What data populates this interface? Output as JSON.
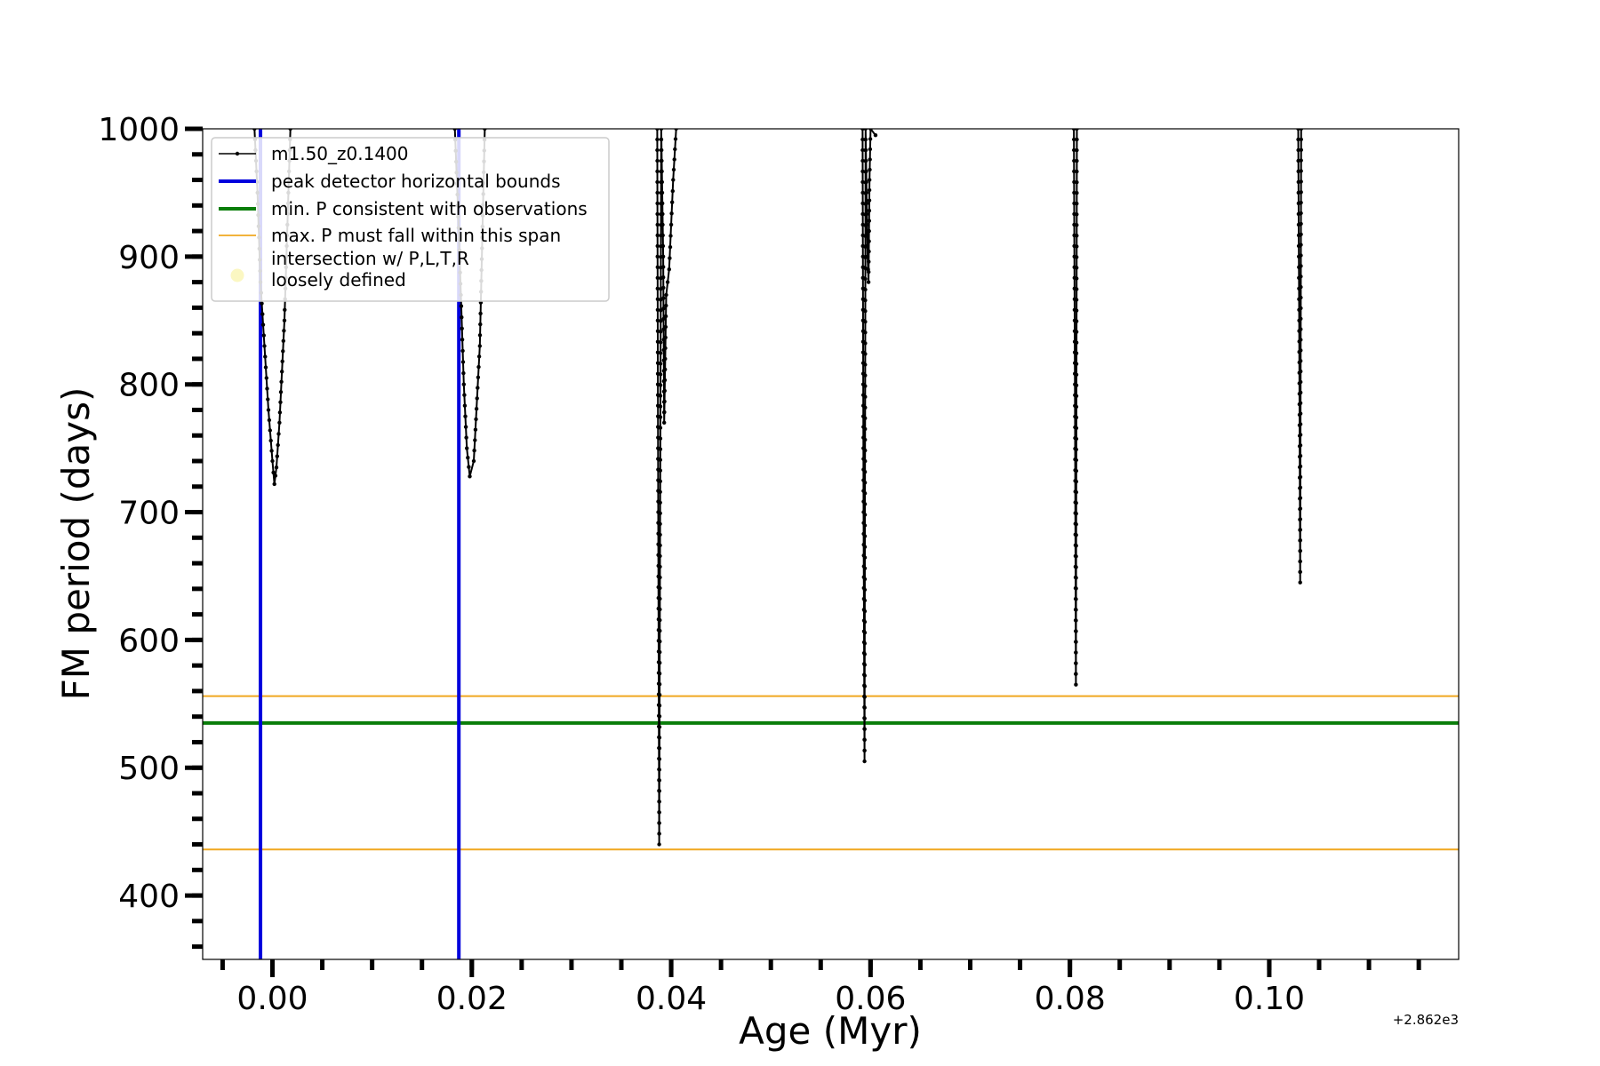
{
  "chart_data": {
    "type": "line",
    "title": "",
    "xlabel": "Age (Myr)",
    "ylabel": "FM period (days)",
    "x_offset_label": "+2.862e3",
    "xlim": [
      -0.007,
      0.119
    ],
    "ylim": [
      350,
      1000
    ],
    "x_ticks": [
      {
        "value": 0.0,
        "label": "0.00"
      },
      {
        "value": 0.02,
        "label": "0.02"
      },
      {
        "value": 0.04,
        "label": "0.04"
      },
      {
        "value": 0.06,
        "label": "0.06"
      },
      {
        "value": 0.08,
        "label": "0.08"
      },
      {
        "value": 0.1,
        "label": "0.10"
      }
    ],
    "y_ticks": [
      {
        "value": 400,
        "label": "400"
      },
      {
        "value": 500,
        "label": "500"
      },
      {
        "value": 600,
        "label": "600"
      },
      {
        "value": 700,
        "label": "700"
      },
      {
        "value": 800,
        "label": "800"
      },
      {
        "value": 900,
        "label": "900"
      },
      {
        "value": 1000,
        "label": "1000"
      }
    ],
    "x_minor_step": 0.005,
    "y_minor_step": 20,
    "legend": {
      "placement": "top-left",
      "entries": [
        {
          "label": "m1.50_z0.1400",
          "style": "line-marker",
          "color": "#000000"
        },
        {
          "label": "peak detector horizontal bounds",
          "style": "line",
          "color": "#0000dd"
        },
        {
          "label": "min. P consistent with observations",
          "style": "line",
          "color": "#0a7d0a"
        },
        {
          "label": "max. P must fall within this span",
          "style": "line",
          "color": "#f0a820"
        },
        {
          "label": "intersection w/ P,L,T,R\nloosely defined",
          "style": "marker",
          "color": "#fbf7c2"
        }
      ]
    },
    "series": [
      {
        "name": "m1.50_z0.1400",
        "color": "#000000",
        "segments": [
          {
            "x": [
              -0.0018,
              -0.0015,
              -0.0012,
              -0.0008,
              -0.0004,
              0.0,
              0.0002,
              0.0004,
              0.0007,
              0.0012,
              0.0018
            ],
            "y": [
              1000,
              950,
              880,
              830,
              780,
              740,
              722,
              735,
              770,
              850,
              1000
            ]
          },
          {
            "x": [
              0.0183,
              0.0186,
              0.0189,
              0.0192,
              0.0195,
              0.0198,
              0.0202,
              0.0208,
              0.0213
            ],
            "y": [
              1000,
              940,
              870,
              800,
              750,
              728,
              740,
              830,
              1000
            ]
          },
          {
            "x": [
              0.0386,
              0.0387,
              0.0388,
              0.039,
              0.0392,
              0.0393,
              0.0395,
              0.0398,
              0.0402,
              0.0405
            ],
            "y": [
              1000,
              700,
              440,
              1000,
              900,
              770,
              870,
              890,
              960,
              1000
            ]
          },
          {
            "x": [
              0.0592,
              0.0593,
              0.0594,
              0.0595,
              0.0597,
              0.0598,
              0.0599,
              0.06,
              0.0605
            ],
            "y": [
              1000,
              700,
              505,
              1000,
              900,
              880,
              960,
              1000,
              995
            ]
          },
          {
            "x": [
              0.0804,
              0.0805,
              0.0806,
              0.0807
            ],
            "y": [
              1000,
              800,
              565,
              1000
            ]
          },
          {
            "x": [
              0.1029,
              0.103,
              0.1031,
              0.1032
            ],
            "y": [
              1000,
              850,
              645,
              1000
            ]
          }
        ]
      }
    ],
    "vertical_lines": [
      {
        "x": -0.0012,
        "color": "#0000dd"
      },
      {
        "x": 0.0187,
        "color": "#0000dd"
      }
    ],
    "horizontal_lines": [
      {
        "y": 535,
        "color": "#0a7d0a",
        "role": "min"
      },
      {
        "y": 556,
        "color": "#f0a820",
        "role": "span"
      },
      {
        "y": 436,
        "color": "#f0a820",
        "role": "span"
      }
    ]
  }
}
